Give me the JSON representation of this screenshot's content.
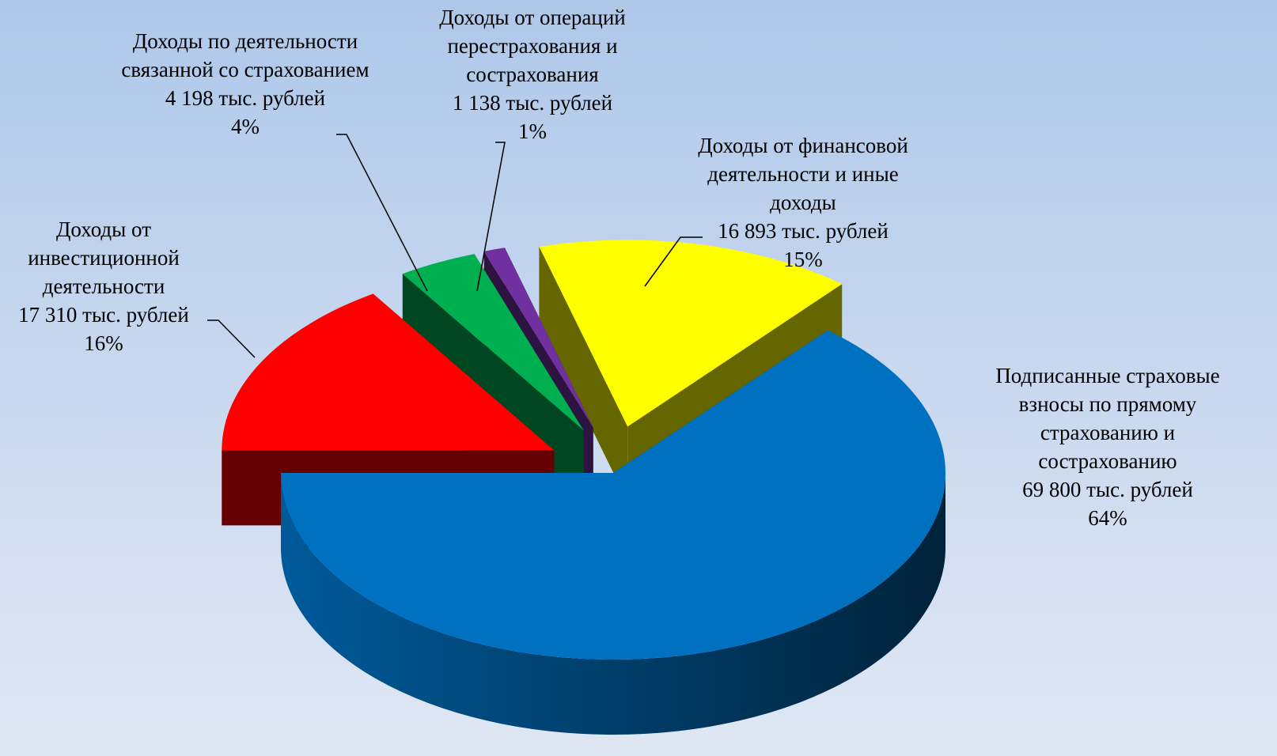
{
  "chart_data": {
    "type": "pie3d",
    "categories": [
      "Подписанные страховые взносы по прямому страхованию и сострахованию",
      "Доходы от инвестиционной деятельности",
      "Доходы по деятельности связанной со страхованием",
      "Доходы от операций перестрахования и сострахования",
      "Доходы от финансовой деятельности и иные доходы"
    ],
    "values": [
      69800,
      17310,
      4198,
      1138,
      16893
    ],
    "value_labels": [
      "69 800 тыс. рублей",
      "17 310 тыс. рублей",
      "4 198 тыс. рублей",
      "1 138 тыс. рублей",
      "16 893 тыс. рублей"
    ],
    "percent_labels": [
      "64%",
      "16%",
      "4%",
      "1%",
      "15%"
    ],
    "colors": [
      "#0070c0",
      "#ff0000",
      "#00b050",
      "#7030a0",
      "#ffff00"
    ]
  }
}
